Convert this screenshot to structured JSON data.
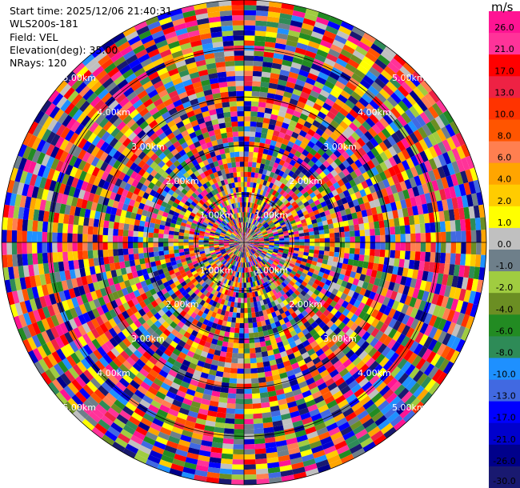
{
  "header": {
    "start_time": "Start time: 2025/12/06 21:40:31",
    "instrument": "WLS200s-181",
    "field": "Field: VEL",
    "elevation": "Elevation(deg): 35.00",
    "nrays": "NRays: 120"
  },
  "chart_data": {
    "type": "heatmap",
    "projection": "polar PPI",
    "field": "VEL",
    "nrays": 120,
    "ring_labels": [
      "1.00km",
      "2.00km",
      "3.00km",
      "4.00km",
      "5.00km"
    ],
    "ring_label_azimuths_deg": [
      45,
      135,
      225,
      315
    ],
    "colorbar": {
      "unit": "m/s",
      "ticks": [
        "26.0",
        "21.0",
        "17.0",
        "13.0",
        "10.0",
        "8.0",
        "6.0",
        "4.0",
        "2.0",
        "1.0",
        "0.0",
        "-1.0",
        "-2.0",
        "-4.0",
        "-6.0",
        "-8.0",
        "-10.0",
        "-13.0",
        "-17.0",
        "-21.0",
        "-26.0",
        "-30.0"
      ],
      "colors": [
        "#ff1493",
        "#ff3399",
        "#ff0000",
        "#ee2244",
        "#ff3300",
        "#ff5500",
        "#ff7f50",
        "#ffa500",
        "#ffcc00",
        "#ffff00",
        "#c0c0c0",
        "#6e7f8a",
        "#a0cc40",
        "#6b8e23",
        "#228b22",
        "#2e8b57",
        "#1e90ff",
        "#4169e1",
        "#0000ff",
        "#0000cd",
        "#00008b",
        "#191970"
      ]
    }
  }
}
